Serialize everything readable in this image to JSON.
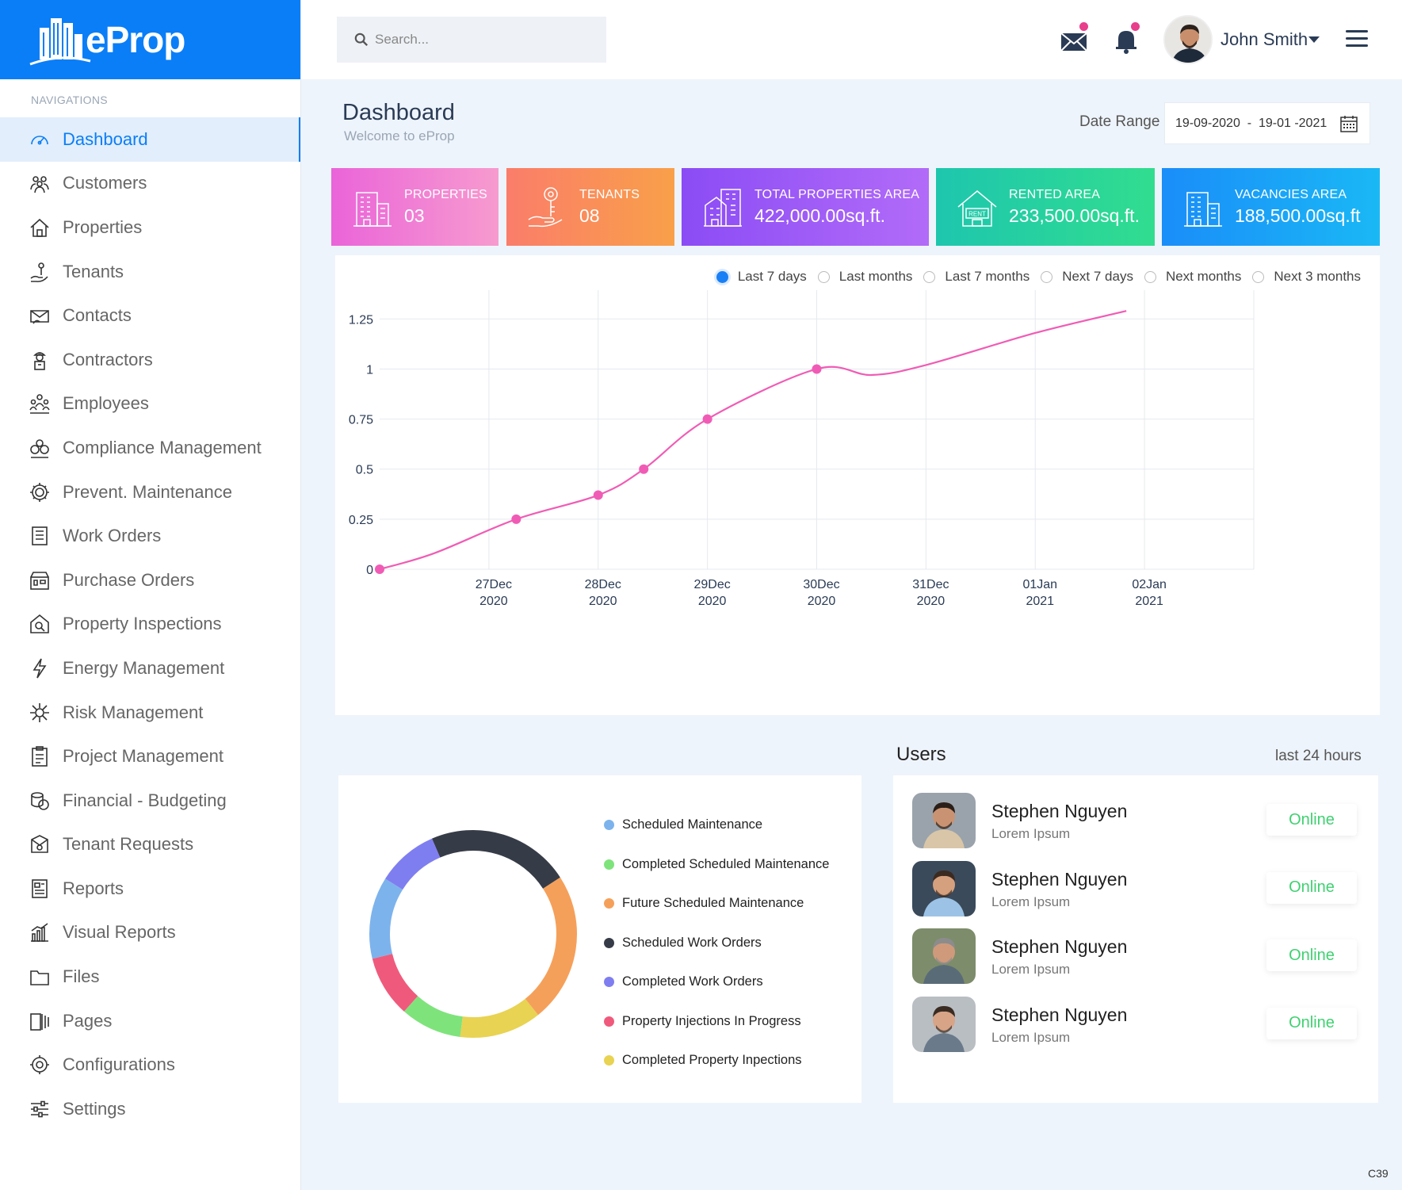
{
  "app": {
    "brand": "eProp"
  },
  "sidebar": {
    "caption": "NAVIGATIONS",
    "items": [
      {
        "label": "Dashboard",
        "icon": "speedometer-icon"
      },
      {
        "label": "Customers",
        "icon": "users-icon"
      },
      {
        "label": "Properties",
        "icon": "house-icon"
      },
      {
        "label": "Tenants",
        "icon": "tenant-icon"
      },
      {
        "label": "Contacts",
        "icon": "contacts-icon"
      },
      {
        "label": "Contractors",
        "icon": "worker-icon"
      },
      {
        "label": "Employees",
        "icon": "group-icon"
      },
      {
        "label": "Compliance Management",
        "icon": "compliance-icon"
      },
      {
        "label": "Prevent. Maintenance",
        "icon": "gear-money-icon"
      },
      {
        "label": "Work Orders",
        "icon": "work-orders-icon"
      },
      {
        "label": "Purchase Orders",
        "icon": "store-icon"
      },
      {
        "label": "Property Inspections",
        "icon": "inspection-icon"
      },
      {
        "label": "Energy Management",
        "icon": "lightning-icon"
      },
      {
        "label": "Risk Management",
        "icon": "risk-icon"
      },
      {
        "label": "Project Management",
        "icon": "clipboard-icon"
      },
      {
        "label": "Financial - Budgeting",
        "icon": "coins-icon"
      },
      {
        "label": "Tenant Requests",
        "icon": "request-icon"
      },
      {
        "label": "Reports",
        "icon": "report-icon"
      },
      {
        "label": "Visual Reports",
        "icon": "bar-chart-icon"
      },
      {
        "label": "Files",
        "icon": "folder-icon"
      },
      {
        "label": "Pages",
        "icon": "pages-icon"
      },
      {
        "label": "Configurations",
        "icon": "gears-icon"
      },
      {
        "label": "Settings",
        "icon": "sliders-icon"
      }
    ]
  },
  "topbar": {
    "search_placeholder": "Search...",
    "user_name": "John Smith"
  },
  "header": {
    "title": "Dashboard",
    "subtitle": "Welcome to eProp",
    "date_label": "Date Range",
    "date_range": "19-09-2020  -  19-01 -2021"
  },
  "cards": [
    {
      "title": "PROPERTIES",
      "value": "03"
    },
    {
      "title": "TENANTS",
      "value": "08"
    },
    {
      "title": "TOTAL PROPERTIES AREA",
      "value": "422,000.00sq.ft."
    },
    {
      "title": "RENTED AREA",
      "value": "233,500.00sq.ft."
    },
    {
      "title": "VACANCIES AREA",
      "value": "188,500.00sq.ft"
    }
  ],
  "range_options": [
    {
      "label": "Last 7 days",
      "selected": true
    },
    {
      "label": "Last months",
      "selected": false
    },
    {
      "label": "Last 7 months",
      "selected": false
    },
    {
      "label": "Next 7 days",
      "selected": false
    },
    {
      "label": "Next months",
      "selected": false
    },
    {
      "label": "Next 3 months",
      "selected": false
    }
  ],
  "chart_data": [
    {
      "type": "line",
      "x_ticks": [
        {
          "date": "2020-12-27",
          "line1": "27Dec",
          "line2": "2020"
        },
        {
          "date": "2020-12-28",
          "line1": "28Dec",
          "line2": "2020"
        },
        {
          "date": "2020-12-29",
          "line1": "29Dec",
          "line2": "2020"
        },
        {
          "date": "2020-12-30",
          "line1": "30Dec",
          "line2": "2020"
        },
        {
          "date": "2020-12-31",
          "line1": "31Dec",
          "line2": "2020"
        },
        {
          "date": "2021-01-01",
          "line1": "01Jan",
          "line2": "2021"
        },
        {
          "date": "2021-01-02",
          "line1": "02Jan",
          "line2": "2021"
        }
      ],
      "y_ticks": [
        0,
        0.25,
        0.5,
        0.75,
        1,
        1.25
      ],
      "ylim": [
        0,
        1.37
      ],
      "xlim": [
        "2020-12-26T00:00",
        "2021-01-03T00:00"
      ],
      "color": "#f05cb5",
      "grid": true,
      "series": [
        {
          "points": [
            {
              "x": "2020-12-26T00:00",
              "y": 0
            },
            {
              "x": "2020-12-26T12:00",
              "y": 0.08
            },
            {
              "x": "2020-12-27T06:00",
              "y": 0.25
            },
            {
              "x": "2020-12-28T00:00",
              "y": 0.37
            },
            {
              "x": "2020-12-28T10:00",
              "y": 0.5
            },
            {
              "x": "2020-12-29T00:00",
              "y": 0.75
            },
            {
              "x": "2020-12-30T00:00",
              "y": 1
            },
            {
              "x": "2020-12-30T12:00",
              "y": 0.97
            },
            {
              "x": "2020-12-31T00:00",
              "y": 1.02
            },
            {
              "x": "2021-01-01T00:00",
              "y": 1.18
            },
            {
              "x": "2021-01-01T20:00",
              "y": 1.29
            }
          ],
          "markers": [
            {
              "x": "2020-12-26T00:00",
              "y": 0
            },
            {
              "x": "2020-12-27T06:00",
              "y": 0.25
            },
            {
              "x": "2020-12-28T00:00",
              "y": 0.37
            },
            {
              "x": "2020-12-28T10:00",
              "y": 0.5
            },
            {
              "x": "2020-12-29T00:00",
              "y": 0.75
            },
            {
              "x": "2020-12-30T00:00",
              "y": 1
            }
          ]
        }
      ]
    },
    {
      "type": "pie",
      "donut": true,
      "slices": [
        {
          "name": "Scheduled Maintenance",
          "value": 12,
          "color": "#7db3ec"
        },
        {
          "name": "Completed Scheduled Maintenance",
          "value": 9,
          "color": "#7fe37c"
        },
        {
          "name": "Future Scheduled Maintenance",
          "value": 22,
          "color": "#f5a05a"
        },
        {
          "name": "Scheduled Work Orders",
          "value": 21,
          "color": "#363c47"
        },
        {
          "name": "Completed Work Orders",
          "value": 9,
          "color": "#7f7ef0"
        },
        {
          "name": "Property Injections In Progress",
          "value": 9,
          "color": "#ef5a7c"
        },
        {
          "name": "Completed Property Inpections",
          "value": 12,
          "color": "#e8d352"
        }
      ],
      "order_clockwise_from_top": [
        3,
        2,
        6,
        1,
        5,
        0,
        4
      ],
      "start_offset": -0.065
    }
  ],
  "users": {
    "title": "Users",
    "subtitle": "last 24 hours",
    "list": [
      {
        "name": "Stephen Nguyen",
        "role": "Lorem Ipsum",
        "status": "Online"
      },
      {
        "name": "Stephen Nguyen",
        "role": "Lorem Ipsum",
        "status": "Online"
      },
      {
        "name": "Stephen Nguyen",
        "role": "Lorem Ipsum",
        "status": "Online"
      },
      {
        "name": "Stephen Nguyen",
        "role": "Lorem Ipsum",
        "status": "Online"
      }
    ]
  },
  "footer": {
    "code": "C39"
  }
}
